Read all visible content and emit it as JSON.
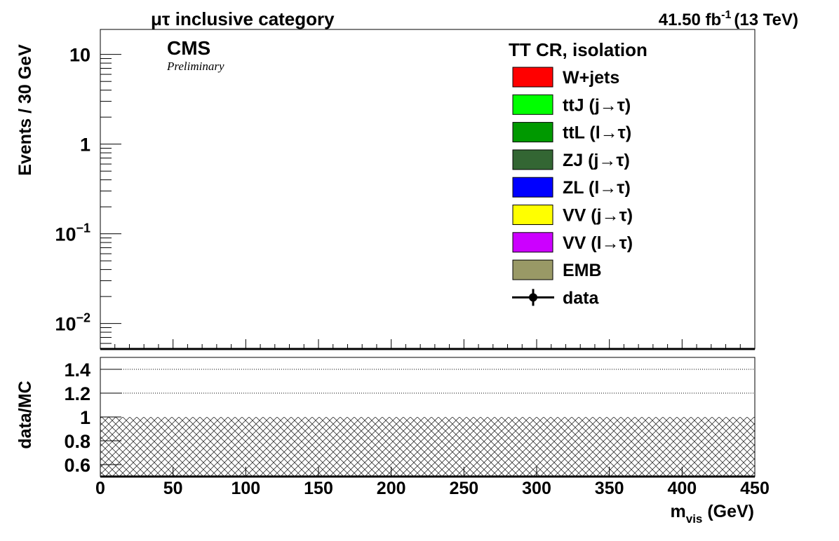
{
  "chart_data": [
    {
      "type": "stacked-histogram",
      "title": "μτ inclusive category",
      "lumi": {
        "text": "41.50 fb",
        "sup": "-1",
        "after": "(13 TeV)"
      },
      "label": "CMS",
      "sublabel": "Preliminary",
      "legend_title": "TT CR,  isolation",
      "ylabel": "Events / 30 GeV",
      "log_y": true,
      "series": [
        {
          "name": "W+jets",
          "color": "#ff0000"
        },
        {
          "name": "ttJ (j→τ)",
          "color": "#00ff00"
        },
        {
          "name": "ttL (l→τ)",
          "color": "#009900"
        },
        {
          "name": "ZJ (j→τ)",
          "color": "#336633"
        },
        {
          "name": "ZL (l→τ)",
          "color": "#0000ff"
        },
        {
          "name": "VV (j→τ)",
          "color": "#ffff00"
        },
        {
          "name": "VV (l→τ)",
          "color": "#cc00ff"
        },
        {
          "name": "EMB",
          "color": "#999966"
        },
        {
          "name": "data",
          "color": "#000000",
          "marker": true
        }
      ],
      "xlim": [
        0,
        450
      ],
      "xticks": [
        0,
        50,
        100,
        150,
        200,
        250,
        300,
        350,
        400,
        450
      ],
      "xminor": [
        10,
        20,
        30,
        40,
        60,
        70,
        80,
        90,
        110,
        120,
        130,
        140,
        160,
        170,
        180,
        190,
        210,
        220,
        230,
        240,
        260,
        270,
        280,
        290,
        310,
        320,
        330,
        340,
        360,
        370,
        380,
        390,
        410,
        420,
        430,
        440
      ],
      "ylim": [
        0.0052,
        19
      ],
      "yticks": [
        {
          "value": 0.01,
          "label": "10",
          "exponent": "−2"
        },
        {
          "value": 0.1,
          "label": "10",
          "exponent": "−1"
        },
        1,
        10
      ],
      "yminor": [
        0.006,
        0.007,
        0.008,
        0.009,
        0.02,
        0.03,
        0.04,
        0.05,
        0.06,
        0.07,
        0.08,
        0.09,
        0.2,
        0.3,
        0.4,
        0.5,
        0.6,
        0.7,
        0.8,
        0.9,
        2,
        3,
        4,
        5,
        6,
        7,
        8,
        9
      ]
    },
    {
      "type": "ratio",
      "ylabel": "data/MC",
      "xlabel": {
        "text": "m",
        "sub": "vis",
        "after": " (GeV)"
      },
      "xlim": [
        0,
        450
      ],
      "xticks": [
        0,
        50,
        100,
        150,
        200,
        250,
        300,
        350,
        400,
        450
      ],
      "ylim": [
        0.5,
        1.5
      ],
      "yticks": [
        0.6,
        0.8,
        1,
        1.2,
        1.4
      ],
      "reference_lines": [
        1.2,
        1.4
      ],
      "fill_level": 1
    }
  ]
}
